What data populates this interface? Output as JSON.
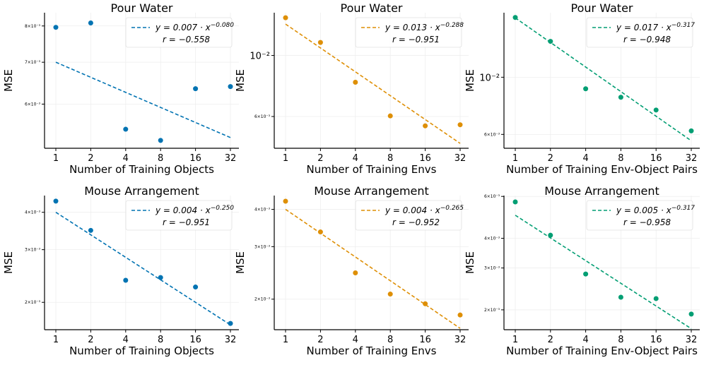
{
  "chart_data": [
    {
      "type": "scatter",
      "title": "Pour Water",
      "xlabel": "Number of Training Objects",
      "ylabel": "MSE",
      "color": "#0173b2",
      "x": [
        1,
        2,
        4,
        8,
        16,
        32
      ],
      "y": [
        0.00796,
        0.00809,
        0.00547,
        0.00525,
        0.00635,
        0.0064
      ],
      "fit": {
        "a": 0.007,
        "b": -0.08,
        "r": -0.558
      },
      "legend": {
        "eq": "y = 0.007 · x^{−0.080}",
        "r": "r = −0.558"
      },
      "yscale": "log",
      "ylim": [
        0.0051,
        0.0084
      ],
      "ytick_labels": [
        {
          "v": 0.008,
          "label": "8×10⁻³"
        },
        {
          "v": 0.007,
          "label": "7×10⁻³"
        },
        {
          "v": 0.006,
          "label": "6×10⁻³"
        }
      ]
    },
    {
      "type": "scatter",
      "title": "Pour Water",
      "xlabel": "Number of Training Envs",
      "ylabel": "MSE",
      "color": "#de8f05",
      "x": [
        1,
        2,
        4,
        8,
        16,
        32
      ],
      "y": [
        0.01371,
        0.01115,
        0.00799,
        0.00603,
        0.00555,
        0.0056
      ],
      "fit": {
        "a": 0.013,
        "b": -0.288,
        "r": -0.951
      },
      "legend": {
        "eq": "y = 0.013 · x^{−0.288}",
        "r": "r = −0.951"
      },
      "yscale": "log",
      "ylim": [
        0.0046,
        0.0143
      ],
      "ytick_labels": [
        {
          "v": 0.01,
          "label": "10⁻²",
          "big": true
        },
        {
          "v": 0.006,
          "label": "6×10⁻³"
        }
      ]
    },
    {
      "type": "scatter",
      "title": "Pour Water",
      "xlabel": "Number of Training Env-Object Pairs",
      "ylabel": "MSE",
      "color": "#029e73",
      "x": [
        1,
        2,
        4,
        8,
        16,
        32
      ],
      "y": [
        0.01706,
        0.01378,
        0.00902,
        0.00836,
        0.00746,
        0.00619
      ],
      "fit": {
        "a": 0.017,
        "b": -0.317,
        "r": -0.948
      },
      "legend": {
        "eq": "y = 0.017 · x^{−0.317}",
        "r": "r = −0.948"
      },
      "yscale": "log",
      "ylim": [
        0.0053,
        0.0178
      ],
      "ytick_labels": [
        {
          "v": 0.01,
          "label": "10⁻²",
          "big": true
        },
        {
          "v": 0.006,
          "label": "6×10⁻³"
        }
      ]
    },
    {
      "type": "scatter",
      "title": "Mouse Arrangement",
      "xlabel": "Number of Training Objects",
      "ylabel": "MSE",
      "color": "#0173b2",
      "x": [
        1,
        2,
        4,
        8,
        16,
        32
      ],
      "y": [
        0.00436,
        0.00348,
        0.00237,
        0.00242,
        0.00225,
        0.0017
      ],
      "fit": {
        "a": 0.004,
        "b": -0.25,
        "r": -0.951
      },
      "legend": {
        "eq": "y = 0.004 · x^{−0.250}",
        "r": "r = −0.951"
      },
      "yscale": "log",
      "ylim": [
        0.00162,
        0.00455
      ],
      "ytick_labels": [
        {
          "v": 0.004,
          "label": "4×10⁻³"
        },
        {
          "v": 0.003,
          "label": "3×10⁻³"
        },
        {
          "v": 0.002,
          "label": "2×10⁻³"
        }
      ]
    },
    {
      "type": "scatter",
      "title": "Mouse Arrangement",
      "xlabel": "Number of Training Envs",
      "ylabel": "MSE",
      "color": "#de8f05",
      "x": [
        1,
        2,
        4,
        8,
        16,
        32
      ],
      "y": [
        0.00426,
        0.00336,
        0.00245,
        0.00208,
        0.00193,
        0.00177
      ],
      "fit": {
        "a": 0.004,
        "b": -0.265,
        "r": -0.952
      },
      "legend": {
        "eq": "y = 0.004 · x^{−0.265}",
        "r": "r = −0.952"
      },
      "yscale": "log",
      "ylim": [
        0.00158,
        0.00445
      ],
      "ytick_labels": [
        {
          "v": 0.004,
          "label": "4×10⁻³"
        },
        {
          "v": 0.003,
          "label": "3×10⁻³"
        },
        {
          "v": 0.002,
          "label": "2×10⁻³"
        }
      ]
    },
    {
      "type": "scatter",
      "title": "Mouse Arrangement",
      "xlabel": "Number of Training Env-Object Pairs",
      "ylabel": "MSE",
      "color": "#029e73",
      "x": [
        1,
        2,
        4,
        8,
        16,
        32
      ],
      "y": [
        0.00569,
        0.00412,
        0.00283,
        0.00226,
        0.00223,
        0.00192
      ],
      "fit": {
        "a": 0.005,
        "b": -0.317,
        "r": -0.958
      },
      "legend": {
        "eq": "y = 0.005 · x^{−0.317}",
        "r": "r = −0.958"
      },
      "yscale": "log",
      "ylim": [
        0.00165,
        0.00605
      ],
      "ytick_labels": [
        {
          "v": 0.006,
          "label": "6×10⁻³"
        },
        {
          "v": 0.004,
          "label": "4×10⁻³"
        },
        {
          "v": 0.003,
          "label": "3×10⁻³"
        },
        {
          "v": 0.002,
          "label": "2×10⁻³"
        }
      ]
    }
  ],
  "xticks": [
    1,
    2,
    4,
    8,
    16,
    32
  ],
  "xscale": "log2",
  "grid": true,
  "legend_position": "upper right"
}
